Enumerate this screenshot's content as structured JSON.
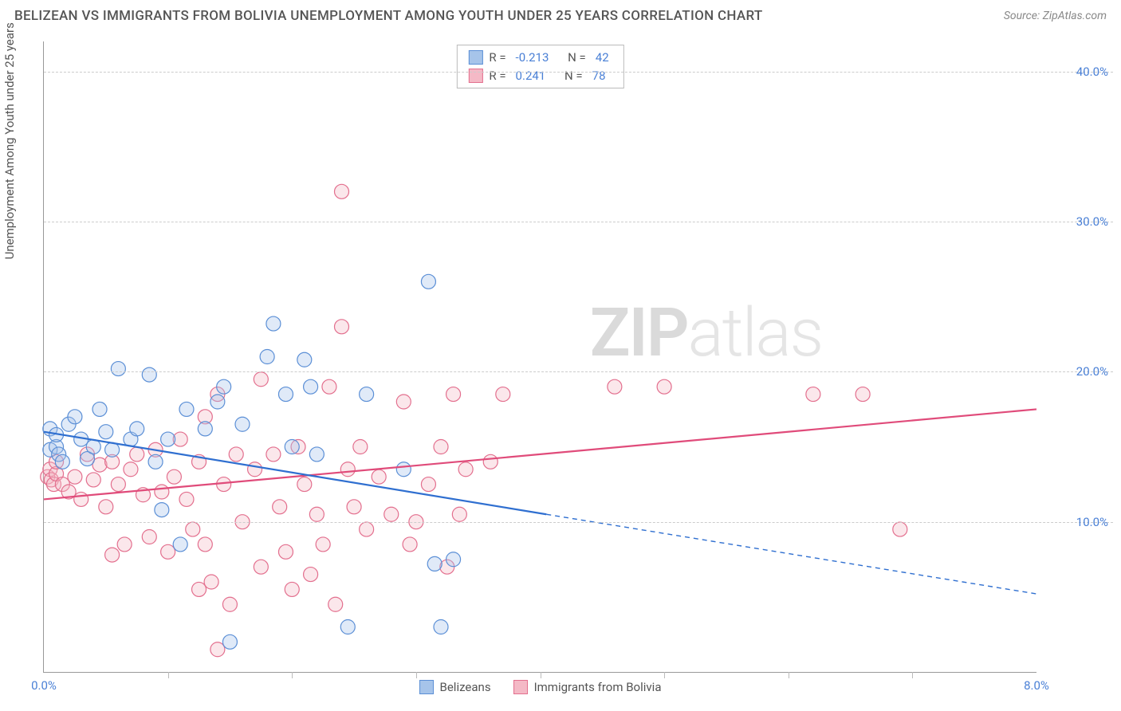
{
  "title": "BELIZEAN VS IMMIGRANTS FROM BOLIVIA UNEMPLOYMENT AMONG YOUTH UNDER 25 YEARS CORRELATION CHART",
  "source_label": "Source: ZipAtlas.com",
  "y_axis_label": "Unemployment Among Youth under 25 years",
  "watermark": {
    "bold": "ZIP",
    "light": "atlas"
  },
  "chart": {
    "type": "scatter",
    "background_color": "#ffffff",
    "grid_color": "#cccccc",
    "axis_color": "#999999",
    "tick_color": "#4a80d6",
    "xlim": [
      0.0,
      8.0
    ],
    "ylim": [
      0.0,
      42.0
    ],
    "xticks": [
      0.0,
      8.0
    ],
    "xtick_labels": [
      "0.0%",
      "8.0%"
    ],
    "xtick_minor": [
      1.0,
      2.0,
      3.0,
      4.0,
      5.0,
      6.0,
      7.0
    ],
    "yticks": [
      10.0,
      20.0,
      30.0,
      40.0
    ],
    "ytick_labels": [
      "10.0%",
      "20.0%",
      "30.0%",
      "40.0%"
    ],
    "marker_radius": 9,
    "series": [
      {
        "name": "Belizeans",
        "color_fill": "#a6c4ea",
        "color_stroke": "#5b8fd6",
        "line_color": "#2f6fd0",
        "line_width": 2.2,
        "r_label": "R =",
        "r_value": "-0.213",
        "n_label": "N =",
        "n_value": "42",
        "trend": {
          "x0": 0.0,
          "y0": 16.0,
          "x1": 4.05,
          "y1": 10.5,
          "x2": 8.0,
          "y2": 5.2
        },
        "points": [
          [
            0.05,
            14.8
          ],
          [
            0.05,
            16.2
          ],
          [
            0.1,
            15.0
          ],
          [
            0.1,
            15.8
          ],
          [
            0.12,
            14.5
          ],
          [
            0.15,
            14.0
          ],
          [
            0.2,
            16.5
          ],
          [
            0.25,
            17.0
          ],
          [
            0.3,
            15.5
          ],
          [
            0.35,
            14.2
          ],
          [
            0.4,
            15.0
          ],
          [
            0.45,
            17.5
          ],
          [
            0.5,
            16.0
          ],
          [
            0.55,
            14.8
          ],
          [
            0.6,
            20.2
          ],
          [
            0.7,
            15.5
          ],
          [
            0.75,
            16.2
          ],
          [
            0.85,
            19.8
          ],
          [
            0.9,
            14.0
          ],
          [
            0.95,
            10.8
          ],
          [
            1.0,
            15.5
          ],
          [
            1.1,
            8.5
          ],
          [
            1.15,
            17.5
          ],
          [
            1.3,
            16.2
          ],
          [
            1.4,
            18.0
          ],
          [
            1.45,
            19.0
          ],
          [
            1.5,
            2.0
          ],
          [
            1.6,
            16.5
          ],
          [
            1.8,
            21.0
          ],
          [
            1.85,
            23.2
          ],
          [
            1.95,
            18.5
          ],
          [
            2.0,
            15.0
          ],
          [
            2.1,
            20.8
          ],
          [
            2.15,
            19.0
          ],
          [
            2.2,
            14.5
          ],
          [
            2.45,
            3.0
          ],
          [
            2.6,
            18.5
          ],
          [
            2.9,
            13.5
          ],
          [
            3.1,
            26.0
          ],
          [
            3.15,
            7.2
          ],
          [
            3.2,
            3.0
          ],
          [
            3.3,
            7.5
          ]
        ]
      },
      {
        "name": "Immigrants from Bolivia",
        "color_fill": "#f4b9c6",
        "color_stroke": "#e36f8e",
        "line_color": "#e04b7a",
        "line_width": 2.2,
        "r_label": "R =",
        "r_value": "0.241",
        "n_label": "N =",
        "n_value": "78",
        "trend": {
          "x0": 0.0,
          "y0": 11.5,
          "x1": 8.0,
          "y1": 17.5
        },
        "points": [
          [
            0.03,
            13.0
          ],
          [
            0.05,
            13.5
          ],
          [
            0.06,
            12.8
          ],
          [
            0.08,
            12.5
          ],
          [
            0.1,
            13.2
          ],
          [
            0.1,
            14.0
          ],
          [
            0.15,
            12.5
          ],
          [
            0.2,
            12.0
          ],
          [
            0.25,
            13.0
          ],
          [
            0.3,
            11.5
          ],
          [
            0.35,
            14.5
          ],
          [
            0.4,
            12.8
          ],
          [
            0.45,
            13.8
          ],
          [
            0.5,
            11.0
          ],
          [
            0.55,
            14.0
          ],
          [
            0.6,
            12.5
          ],
          [
            0.65,
            8.5
          ],
          [
            0.7,
            13.5
          ],
          [
            0.75,
            14.5
          ],
          [
            0.8,
            11.8
          ],
          [
            0.85,
            9.0
          ],
          [
            0.9,
            14.8
          ],
          [
            0.95,
            12.0
          ],
          [
            1.0,
            8.0
          ],
          [
            1.05,
            13.0
          ],
          [
            1.1,
            15.5
          ],
          [
            1.15,
            11.5
          ],
          [
            1.2,
            9.5
          ],
          [
            1.25,
            14.0
          ],
          [
            1.3,
            17.0
          ],
          [
            1.3,
            8.5
          ],
          [
            1.35,
            6.0
          ],
          [
            1.4,
            18.5
          ],
          [
            1.4,
            1.5
          ],
          [
            1.45,
            12.5
          ],
          [
            1.5,
            4.5
          ],
          [
            1.55,
            14.5
          ],
          [
            1.6,
            10.0
          ],
          [
            1.7,
            13.5
          ],
          [
            1.75,
            19.5
          ],
          [
            1.75,
            7.0
          ],
          [
            1.85,
            14.5
          ],
          [
            1.9,
            11.0
          ],
          [
            1.95,
            8.0
          ],
          [
            2.0,
            5.5
          ],
          [
            2.05,
            15.0
          ],
          [
            2.1,
            12.5
          ],
          [
            2.2,
            10.5
          ],
          [
            2.25,
            8.5
          ],
          [
            2.3,
            19.0
          ],
          [
            2.35,
            4.5
          ],
          [
            2.4,
            32.0
          ],
          [
            2.4,
            23.0
          ],
          [
            2.45,
            13.5
          ],
          [
            2.5,
            11.0
          ],
          [
            2.55,
            15.0
          ],
          [
            2.6,
            9.5
          ],
          [
            2.7,
            13.0
          ],
          [
            2.8,
            10.5
          ],
          [
            2.9,
            18.0
          ],
          [
            2.95,
            8.5
          ],
          [
            3.0,
            10.0
          ],
          [
            3.1,
            12.5
          ],
          [
            3.2,
            15.0
          ],
          [
            3.25,
            7.0
          ],
          [
            3.3,
            18.5
          ],
          [
            3.35,
            10.5
          ],
          [
            3.4,
            13.5
          ],
          [
            3.6,
            14.0
          ],
          [
            3.7,
            18.5
          ],
          [
            4.6,
            19.0
          ],
          [
            5.0,
            19.0
          ],
          [
            6.2,
            18.5
          ],
          [
            6.6,
            18.5
          ],
          [
            6.9,
            9.5
          ],
          [
            1.25,
            5.5
          ],
          [
            2.15,
            6.5
          ],
          [
            0.55,
            7.8
          ]
        ]
      }
    ],
    "bottom_legend": [
      {
        "label": "Belizeans",
        "fill": "#a6c4ea",
        "stroke": "#5b8fd6"
      },
      {
        "label": "Immigrants from Bolivia",
        "fill": "#f4b9c6",
        "stroke": "#e36f8e"
      }
    ]
  }
}
